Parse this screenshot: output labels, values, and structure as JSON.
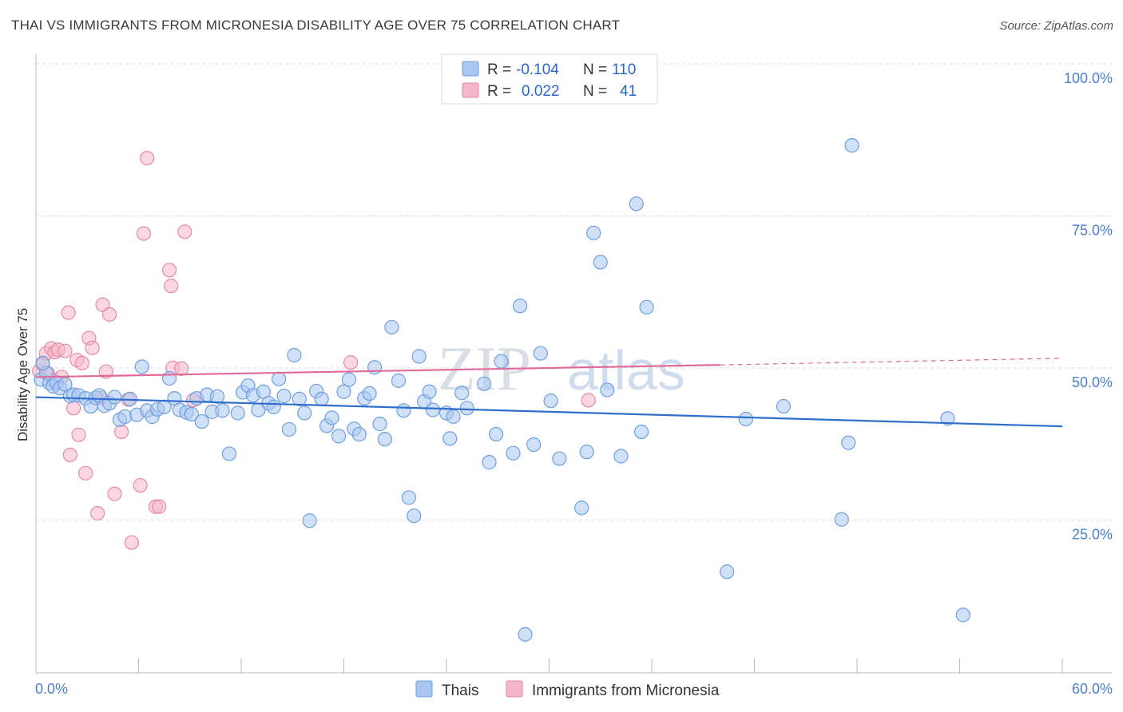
{
  "header": {
    "title": "THAI VS IMMIGRANTS FROM MICRONESIA DISABILITY AGE OVER 75 CORRELATION CHART",
    "source": "Source: ZipAtlas.com"
  },
  "watermark": {
    "zip": "ZIP",
    "atlas": "atlas"
  },
  "legend": {
    "rows": [
      {
        "r_label": "R =",
        "r_value": "-0.104",
        "n_label": "N =",
        "n_value": "110",
        "color": "#a9c7f0"
      },
      {
        "r_label": "R =",
        "r_value": "0.022",
        "n_label": "N =",
        "n_value": "41",
        "color": "#f6b6c9"
      }
    ]
  },
  "chart_data": {
    "type": "scatter",
    "ylabel": "Disability Age Over 75",
    "xlim": [
      0,
      60
    ],
    "ylim": [
      0,
      100
    ],
    "x_tick_labels": [
      "0.0%",
      "60.0%"
    ],
    "y_ticks": [
      {
        "value": 100,
        "label": "100.0%"
      },
      {
        "value": 75,
        "label": "75.0%"
      },
      {
        "value": 50,
        "label": "50.0%"
      },
      {
        "value": 25,
        "label": "25.0%"
      }
    ],
    "grid": true,
    "series": [
      {
        "name": "Thais",
        "color": "#a9c7f0",
        "stroke": "#6f9fe0",
        "trend_color": "#2f6fcc",
        "trend": {
          "x0": 0,
          "y0": 45.2,
          "x1": 60,
          "y1": 40.4
        },
        "points": [
          [
            0.3,
            48.1
          ],
          [
            0.6,
            49.2
          ],
          [
            0.8,
            47.5
          ],
          [
            1.0,
            47.0
          ],
          [
            1.2,
            47.6
          ],
          [
            1.4,
            46.7
          ],
          [
            1.7,
            47.3
          ],
          [
            2.0,
            45.4
          ],
          [
            2.2,
            45.6
          ],
          [
            2.5,
            45.5
          ],
          [
            2.9,
            45.0
          ],
          [
            3.2,
            43.7
          ],
          [
            3.5,
            45.1
          ],
          [
            3.7,
            45.5
          ],
          [
            4.0,
            43.8
          ],
          [
            4.3,
            44.2
          ],
          [
            4.6,
            45.2
          ],
          [
            4.9,
            41.5
          ],
          [
            5.2,
            42.0
          ],
          [
            5.5,
            44.9
          ],
          [
            5.9,
            42.3
          ],
          [
            6.2,
            50.2
          ],
          [
            6.5,
            43.0
          ],
          [
            6.8,
            42.0
          ],
          [
            7.1,
            43.2
          ],
          [
            7.5,
            43.6
          ],
          [
            7.8,
            48.3
          ],
          [
            8.1,
            45.0
          ],
          [
            8.4,
            43.1
          ],
          [
            8.8,
            42.7
          ],
          [
            9.1,
            42.4
          ],
          [
            9.4,
            45.0
          ],
          [
            9.7,
            41.2
          ],
          [
            10.0,
            45.6
          ],
          [
            10.3,
            42.8
          ],
          [
            10.6,
            45.3
          ],
          [
            10.9,
            43.0
          ],
          [
            11.3,
            35.9
          ],
          [
            11.8,
            42.6
          ],
          [
            12.1,
            46.0
          ],
          [
            12.4,
            47.1
          ],
          [
            12.7,
            45.5
          ],
          [
            13.0,
            43.1
          ],
          [
            13.3,
            46.1
          ],
          [
            13.6,
            44.2
          ],
          [
            13.9,
            43.6
          ],
          [
            14.2,
            48.2
          ],
          [
            14.5,
            45.4
          ],
          [
            14.8,
            39.9
          ],
          [
            15.1,
            52.1
          ],
          [
            15.4,
            44.9
          ],
          [
            15.7,
            42.6
          ],
          [
            16.0,
            24.9
          ],
          [
            16.4,
            46.2
          ],
          [
            16.7,
            44.9
          ],
          [
            17.0,
            40.5
          ],
          [
            17.3,
            41.8
          ],
          [
            17.7,
            38.8
          ],
          [
            18.0,
            46.1
          ],
          [
            18.3,
            48.1
          ],
          [
            18.6,
            40.0
          ],
          [
            18.9,
            39.1
          ],
          [
            19.2,
            45.0
          ],
          [
            19.5,
            45.8
          ],
          [
            19.8,
            50.1
          ],
          [
            20.1,
            40.8
          ],
          [
            20.4,
            38.3
          ],
          [
            20.8,
            56.7
          ],
          [
            21.2,
            47.9
          ],
          [
            21.5,
            43.0
          ],
          [
            21.8,
            28.7
          ],
          [
            22.1,
            25.7
          ],
          [
            22.4,
            51.9
          ],
          [
            22.7,
            44.5
          ],
          [
            23.0,
            46.1
          ],
          [
            23.2,
            43.1
          ],
          [
            24.0,
            42.6
          ],
          [
            24.2,
            38.4
          ],
          [
            24.4,
            42.0
          ],
          [
            24.9,
            45.9
          ],
          [
            25.2,
            43.4
          ],
          [
            26.2,
            47.4
          ],
          [
            26.5,
            34.5
          ],
          [
            26.9,
            39.1
          ],
          [
            27.2,
            51.1
          ],
          [
            27.9,
            36.0
          ],
          [
            28.3,
            60.2
          ],
          [
            28.6,
            6.2
          ],
          [
            29.1,
            37.4
          ],
          [
            29.5,
            52.4
          ],
          [
            30.1,
            44.6
          ],
          [
            30.6,
            35.1
          ],
          [
            31.9,
            27.0
          ],
          [
            32.2,
            36.2
          ],
          [
            32.6,
            72.2
          ],
          [
            33.0,
            67.4
          ],
          [
            33.4,
            46.4
          ],
          [
            34.2,
            35.5
          ],
          [
            35.1,
            77.0
          ],
          [
            35.4,
            39.5
          ],
          [
            35.7,
            60.0
          ],
          [
            40.4,
            16.5
          ],
          [
            41.5,
            41.6
          ],
          [
            43.7,
            43.7
          ],
          [
            47.1,
            25.1
          ],
          [
            47.5,
            37.7
          ],
          [
            47.7,
            86.6
          ],
          [
            53.3,
            41.7
          ],
          [
            54.2,
            9.4
          ],
          [
            0.4,
            50.8
          ]
        ]
      },
      {
        "name": "Immigrants from Micronesia",
        "color": "#f6b6c9",
        "stroke": "#e48aa6",
        "trend_color": "#e0699a",
        "trend": {
          "x0": 0,
          "y0": 48.5,
          "x1": 40,
          "y1": 50.5
        },
        "trend_dashed": {
          "x0": 40,
          "y0": 50.5,
          "x1": 60,
          "y1": 51.6
        },
        "points": [
          [
            0.2,
            49.5
          ],
          [
            0.4,
            50.6
          ],
          [
            0.6,
            52.4
          ],
          [
            0.7,
            49.1
          ],
          [
            0.9,
            53.2
          ],
          [
            1.0,
            48.0
          ],
          [
            1.1,
            52.6
          ],
          [
            1.3,
            53.0
          ],
          [
            1.5,
            48.5
          ],
          [
            1.7,
            52.8
          ],
          [
            1.9,
            59.1
          ],
          [
            2.0,
            35.7
          ],
          [
            2.2,
            43.4
          ],
          [
            2.4,
            51.3
          ],
          [
            2.5,
            39.0
          ],
          [
            2.7,
            50.8
          ],
          [
            2.9,
            32.7
          ],
          [
            3.1,
            54.9
          ],
          [
            3.3,
            53.3
          ],
          [
            3.6,
            26.1
          ],
          [
            3.8,
            45.1
          ],
          [
            3.9,
            60.4
          ],
          [
            4.1,
            49.4
          ],
          [
            4.3,
            58.8
          ],
          [
            4.6,
            29.3
          ],
          [
            5.0,
            39.5
          ],
          [
            5.4,
            44.8
          ],
          [
            5.6,
            21.3
          ],
          [
            6.1,
            30.7
          ],
          [
            6.3,
            72.1
          ],
          [
            6.5,
            84.5
          ],
          [
            7.0,
            27.2
          ],
          [
            7.2,
            27.2
          ],
          [
            7.8,
            66.1
          ],
          [
            7.9,
            63.5
          ],
          [
            8.0,
            50.0
          ],
          [
            8.7,
            72.4
          ],
          [
            8.5,
            49.9
          ],
          [
            9.2,
            44.7
          ],
          [
            18.4,
            50.9
          ],
          [
            32.3,
            44.7
          ]
        ]
      }
    ]
  }
}
